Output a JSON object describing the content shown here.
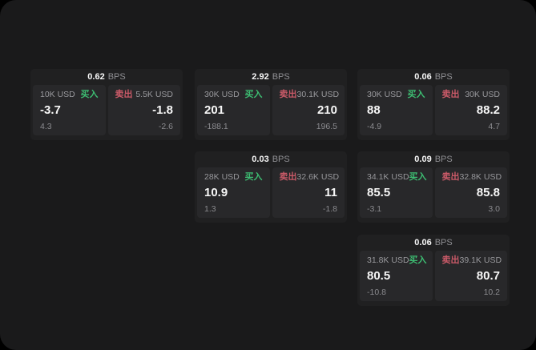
{
  "theme": {
    "body_bg": "#000000",
    "surface_bg": "#1a1a1b",
    "card_bg": "#202021",
    "panel_bg": "#28282a",
    "text_primary": "#f7f7f7",
    "text_muted": "#8f8f93",
    "buy_color": "#3dbd72",
    "sell_color": "#ca5a68"
  },
  "labels": {
    "bps": "BPS",
    "buy": "买入",
    "sell": "卖出"
  },
  "cards": [
    {
      "bps": "0.62",
      "buy": {
        "amount": "10K USD",
        "value": "-3.7",
        "delta": "4.3"
      },
      "sell": {
        "amount": "5.5K USD",
        "value": "-1.8",
        "delta": "-2.6"
      }
    },
    {
      "bps": "2.92",
      "buy": {
        "amount": "30K USD",
        "value": "201",
        "delta": "-188.1"
      },
      "sell": {
        "amount": "30.1K USD",
        "value": "210",
        "delta": "196.5"
      }
    },
    {
      "bps": "0.06",
      "buy": {
        "amount": "30K USD",
        "value": "88",
        "delta": "-4.9"
      },
      "sell": {
        "amount": "30K USD",
        "value": "88.2",
        "delta": "4.7"
      }
    },
    {
      "bps": "0.03",
      "buy": {
        "amount": "28K USD",
        "value": "10.9",
        "delta": "1.3"
      },
      "sell": {
        "amount": "32.6K USD",
        "value": "11",
        "delta": "-1.8"
      }
    },
    {
      "bps": "0.09",
      "buy": {
        "amount": "34.1K USD",
        "value": "85.5",
        "delta": "-3.1"
      },
      "sell": {
        "amount": "32.8K USD",
        "value": "85.8",
        "delta": "3.0"
      }
    },
    {
      "bps": "0.06",
      "buy": {
        "amount": "31.8K USD",
        "value": "80.5",
        "delta": "-10.8"
      },
      "sell": {
        "amount": "39.1K USD",
        "value": "80.7",
        "delta": "10.2"
      }
    }
  ]
}
